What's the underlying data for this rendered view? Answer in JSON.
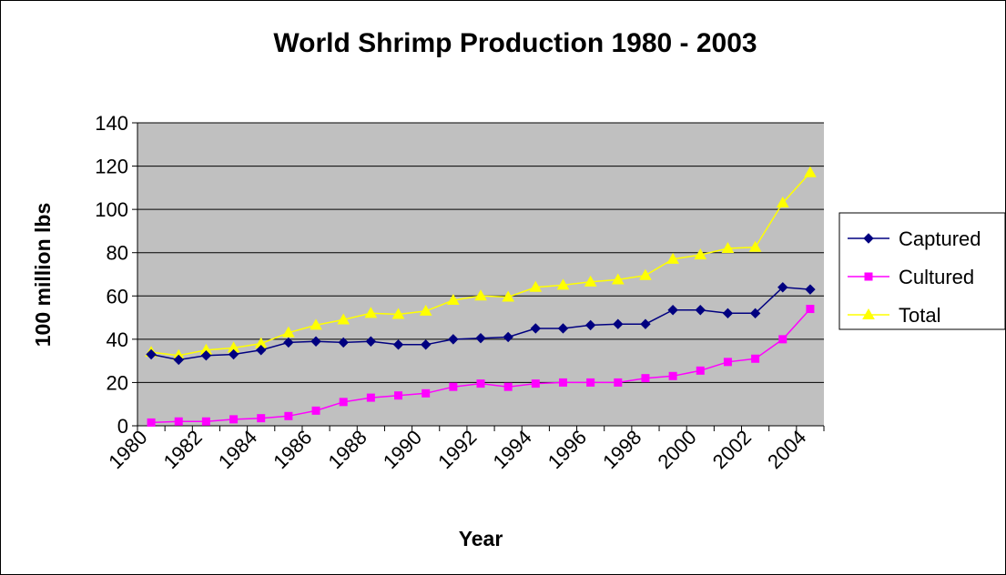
{
  "chart_data": {
    "type": "line",
    "title": "World Shrimp Production 1980 - 2003",
    "xlabel": "Year",
    "ylabel": "100 million lbs",
    "ylim": [
      0,
      140
    ],
    "yticks": [
      0,
      20,
      40,
      60,
      80,
      100,
      120,
      140
    ],
    "x_tick_labels": [
      "1980",
      "1982",
      "1984",
      "1986",
      "1988",
      "1990",
      "1992",
      "1994",
      "1996",
      "1998",
      "2000",
      "2002",
      "2004"
    ],
    "grid": true,
    "plot_background": "#c0c0c0",
    "legend_position": "right",
    "series": [
      {
        "name": "Captured",
        "color": "#000080",
        "marker": "diamond",
        "values": [
          33,
          30.5,
          32.5,
          33,
          35,
          38.5,
          39,
          38.5,
          39,
          37.5,
          37.5,
          40,
          40.5,
          41,
          45,
          45,
          46.5,
          47,
          47,
          53.5,
          53.5,
          52,
          52,
          64,
          63
        ]
      },
      {
        "name": "Cultured",
        "color": "#ff00ff",
        "marker": "square",
        "values": [
          1.5,
          2,
          2,
          3,
          3.5,
          4.5,
          7,
          11,
          13,
          14,
          15,
          18,
          19.5,
          18,
          19.5,
          20,
          20,
          20,
          22,
          23,
          25.5,
          29.5,
          31,
          40,
          54
        ]
      },
      {
        "name": "Total",
        "color": "#ffff00",
        "marker": "triangle",
        "values": [
          34,
          32.5,
          35,
          36,
          38,
          43,
          46.5,
          49,
          52,
          51.5,
          53,
          58,
          60,
          59.5,
          64,
          65,
          66.5,
          67.5,
          69.5,
          77,
          79,
          82,
          82.5,
          103,
          117
        ]
      }
    ]
  }
}
